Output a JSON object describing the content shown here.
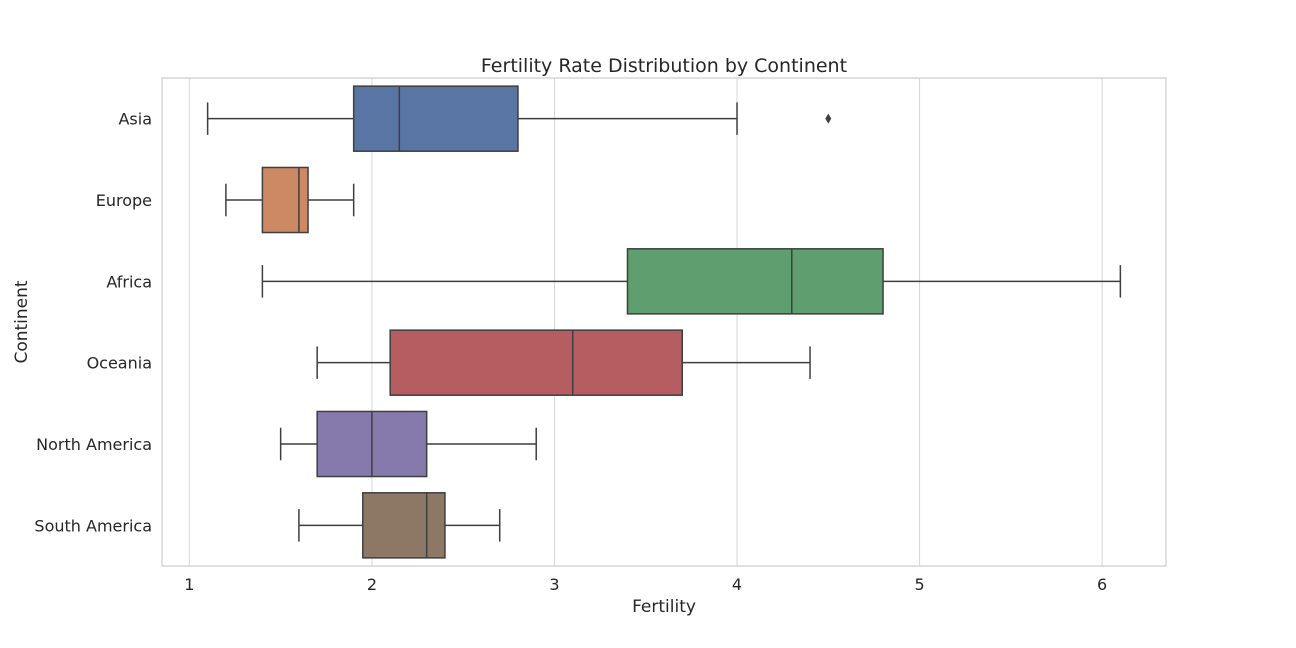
{
  "chart_data": {
    "type": "boxplot",
    "orientation": "horizontal",
    "title": "Fertility Rate Distribution by Continent",
    "xlabel": "Fertility",
    "ylabel": "Continent",
    "xlim": [
      0.85,
      6.35
    ],
    "xticks": [
      1,
      2,
      3,
      4,
      5,
      6
    ],
    "grid": "vertical",
    "legend": "none",
    "categories": [
      "Asia",
      "Europe",
      "Africa",
      "Oceania",
      "North America",
      "South America"
    ],
    "boxes": [
      {
        "category": "Asia",
        "whisker_low": 1.1,
        "q1": 1.9,
        "median": 2.15,
        "q3": 2.8,
        "whisker_high": 4.0,
        "outliers": [
          4.5
        ],
        "color": "#5875a4"
      },
      {
        "category": "Europe",
        "whisker_low": 1.2,
        "q1": 1.4,
        "median": 1.6,
        "q3": 1.65,
        "whisker_high": 1.9,
        "outliers": [],
        "color": "#cc8963"
      },
      {
        "category": "Africa",
        "whisker_low": 1.4,
        "q1": 3.4,
        "median": 4.3,
        "q3": 4.8,
        "whisker_high": 6.1,
        "outliers": [],
        "color": "#5f9e6e"
      },
      {
        "category": "Oceania",
        "whisker_low": 1.7,
        "q1": 2.1,
        "median": 3.1,
        "q3": 3.7,
        "whisker_high": 4.4,
        "outliers": [],
        "color": "#b55d60"
      },
      {
        "category": "North America",
        "whisker_low": 1.5,
        "q1": 1.7,
        "median": 2.0,
        "q3": 2.3,
        "whisker_high": 2.9,
        "outliers": [],
        "color": "#857aab"
      },
      {
        "category": "South America",
        "whisker_low": 1.6,
        "q1": 1.95,
        "median": 2.3,
        "q3": 2.4,
        "whisker_high": 2.7,
        "outliers": [],
        "color": "#8d7866"
      }
    ]
  }
}
